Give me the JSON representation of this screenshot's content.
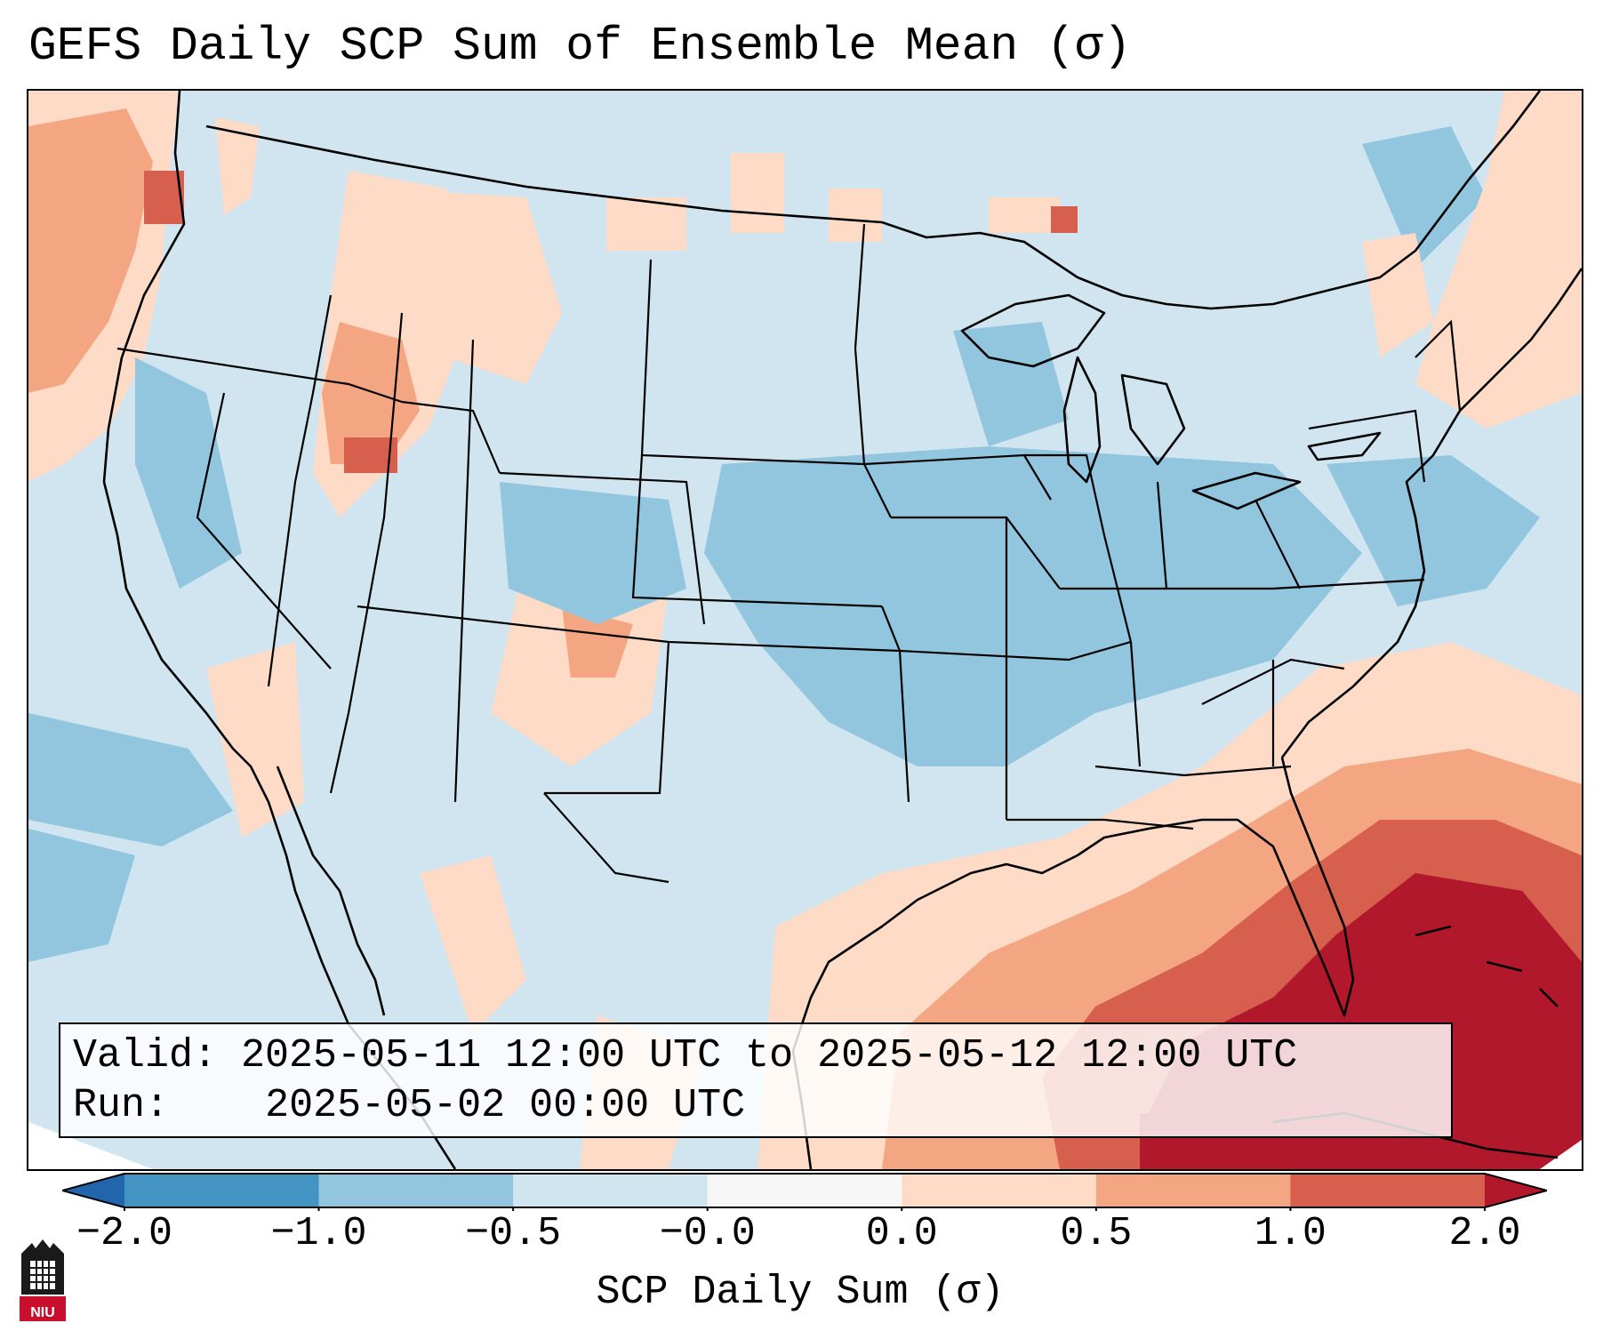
{
  "title": "GEFS Daily SCP Sum of Ensemble Mean (σ)",
  "info": {
    "valid_label": "Valid:",
    "valid_value": "2025-05-11 12:00 UTC to 2025-05-12 12:00 UTC",
    "run_label": "Run:",
    "run_value": "2025-05-02 00:00 UTC"
  },
  "colorbar": {
    "label": "SCP Daily Sum (σ)",
    "ticks": [
      "−2.0",
      "−1.0",
      "−0.5",
      "−0.0",
      "0.0",
      "0.5",
      "1.0",
      "2.0"
    ],
    "colors": [
      "#2166ac",
      "#4393c3",
      "#92c5de",
      "#d1e5f0",
      "#f7f7f7",
      "#fddbc7",
      "#f4a582",
      "#d6604d",
      "#b2182b"
    ],
    "extend": "both"
  },
  "logo": {
    "text": "NIU"
  },
  "map": {
    "projection": "Lambert Conformal, CONUS",
    "background_category": "-0.5 to -0.0",
    "regions": [
      {
        "name": "Gulf of Mexico / Caribbean / Bahamas",
        "level": "1.0 to 2.0 and > 2.0"
      },
      {
        "name": "Southern Atlantic off the Carolinas and Georgia",
        "level": "0.0 to 1.0"
      },
      {
        "name": "Pacific Northwest coast and Idaho / Utah",
        "level": "0.0 to 1.0"
      },
      {
        "name": "Central Plains, Mississippi and Ohio Valleys",
        "level": "-1.0 to -0.5"
      }
    ]
  }
}
